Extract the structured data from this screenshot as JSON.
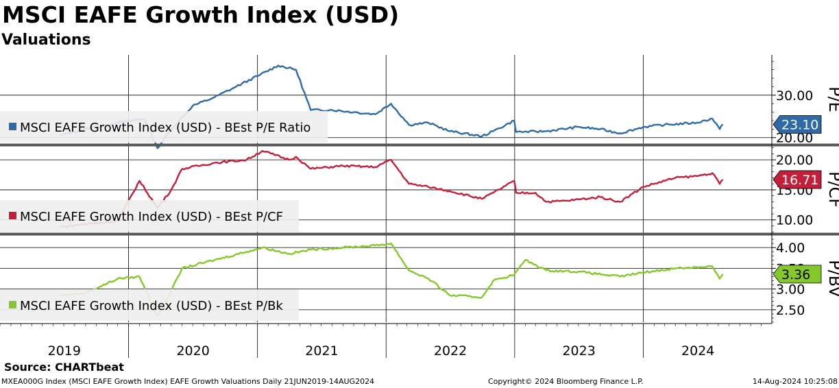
{
  "header": {
    "title": "MSCI EAFE Growth Index (USD)",
    "subtitle": "Valuations"
  },
  "footer": {
    "source": "Source: CHARTbeat",
    "ticker_line": "MXEA000G Index (MSCI EAFE Growth Index) EAFE Growth Valuations  Daily 21JUN2019-14AUG2024",
    "copyright": "Copyright© 2024 Bloomberg Finance L.P.",
    "timestamp": "14-Aug-2024 10:25:08"
  },
  "chart_data": {
    "type": "line",
    "x_range": [
      "2019-01-01",
      "2024-12-31"
    ],
    "data_start": "2019-06-21",
    "data_end": "2024-08-14",
    "x_tick_labels": [
      "2019",
      "2020",
      "2021",
      "2022",
      "2023",
      "2024"
    ],
    "panels": [
      {
        "axis_title": "P/E",
        "legend": "MSCI EAFE Growth Index (USD) - BEst P/E Ratio",
        "color": "#2e6aa8",
        "last_value": 23.1,
        "last_label": "23.10",
        "ylim": [
          18.5,
          39.5
        ],
        "ticks": [
          20,
          30
        ],
        "tick_labels": [
          "20.00",
          "30.00"
        ],
        "series": {
          "x": [
            "2019-06-21",
            "2019-09-01",
            "2019-12-01",
            "2020-02-15",
            "2020-03-23",
            "2020-05-01",
            "2020-07-01",
            "2020-09-01",
            "2020-11-01",
            "2021-01-01",
            "2021-03-01",
            "2021-04-20",
            "2021-06-01",
            "2021-08-01",
            "2021-10-01",
            "2021-12-01",
            "2022-01-15",
            "2022-03-07",
            "2022-05-01",
            "2022-07-01",
            "2022-09-30",
            "2022-11-01",
            "2022-12-31",
            "2023-01-05",
            "2023-04-01",
            "2023-07-01",
            "2023-09-01",
            "2023-10-27",
            "2024-01-01",
            "2024-03-01",
            "2024-06-01",
            "2024-07-15",
            "2024-08-05",
            "2024-08-14"
          ],
          "y": [
            20.5,
            22.0,
            23.5,
            24.5,
            17.5,
            22.0,
            27.5,
            29.5,
            32.0,
            34.5,
            37.0,
            36.0,
            26.5,
            26.5,
            26.0,
            25.5,
            28.0,
            23.0,
            23.5,
            21.5,
            20.3,
            21.5,
            24.0,
            21.3,
            21.5,
            22.5,
            22.0,
            21.0,
            22.5,
            23.0,
            23.5,
            24.5,
            22.0,
            23.1
          ]
        }
      },
      {
        "axis_title": "P/CF",
        "legend": "MSCI EAFE Growth Index (USD) - BEst P/CF",
        "color": "#c41e3a",
        "last_value": 16.71,
        "last_label": "16.71",
        "ylim": [
          7.8,
          22.3
        ],
        "ticks": [
          10,
          15,
          20
        ],
        "tick_labels": [
          "10.00",
          "15.00",
          "20.00"
        ],
        "series": {
          "x": [
            "2019-06-21",
            "2019-09-01",
            "2019-12-01",
            "2020-02-01",
            "2020-03-23",
            "2020-05-01",
            "2020-06-01",
            "2020-09-01",
            "2020-12-01",
            "2021-01-15",
            "2021-04-01",
            "2021-04-20",
            "2021-06-01",
            "2021-09-01",
            "2021-12-01",
            "2022-01-15",
            "2022-03-07",
            "2022-05-01",
            "2022-07-01",
            "2022-09-30",
            "2022-11-01",
            "2022-12-31",
            "2023-01-05",
            "2023-03-01",
            "2023-04-01",
            "2023-06-01",
            "2023-09-01",
            "2023-10-27",
            "2024-01-01",
            "2024-04-01",
            "2024-06-01",
            "2024-07-15",
            "2024-08-05",
            "2024-08-14"
          ],
          "y": [
            8.8,
            9.3,
            9.8,
            16.5,
            12.0,
            15.0,
            18.5,
            19.5,
            20.0,
            21.5,
            20.0,
            20.5,
            18.5,
            19.0,
            18.8,
            20.0,
            16.0,
            15.5,
            14.8,
            13.5,
            14.5,
            16.5,
            14.5,
            14.5,
            13.0,
            13.2,
            13.8,
            13.0,
            15.5,
            17.0,
            17.3,
            17.8,
            16.0,
            16.71
          ]
        }
      },
      {
        "axis_title": "P/BV",
        "legend": "MSCI EAFE Growth Index (USD) - BEst P/Bk",
        "color": "#84c82b",
        "last_value": 3.36,
        "last_label": "3.36",
        "ylim": [
          2.2,
          4.3
        ],
        "ticks": [
          2.5,
          3.0,
          3.5,
          4.0
        ],
        "tick_labels": [
          "2.50",
          "3.00",
          "3.50",
          "4.00"
        ],
        "series": {
          "x": [
            "2019-06-21",
            "2019-09-01",
            "2019-12-01",
            "2020-02-01",
            "2020-03-23",
            "2020-05-01",
            "2020-06-01",
            "2020-09-01",
            "2020-12-01",
            "2021-01-15",
            "2021-04-01",
            "2021-06-01",
            "2021-09-01",
            "2021-12-01",
            "2022-01-15",
            "2022-03-07",
            "2022-05-01",
            "2022-07-01",
            "2022-09-30",
            "2022-11-01",
            "2022-12-31",
            "2023-01-31",
            "2023-04-01",
            "2023-07-01",
            "2023-10-27",
            "2024-01-01",
            "2024-04-01",
            "2024-07-15",
            "2024-08-05",
            "2024-08-14"
          ],
          "y": [
            2.85,
            2.9,
            3.25,
            3.3,
            2.35,
            2.95,
            3.5,
            3.7,
            3.9,
            4.0,
            3.85,
            3.95,
            4.0,
            4.05,
            4.1,
            3.45,
            3.25,
            2.85,
            2.8,
            3.2,
            3.35,
            3.7,
            3.45,
            3.42,
            3.3,
            3.4,
            3.5,
            3.55,
            3.25,
            3.36
          ]
        }
      }
    ]
  }
}
